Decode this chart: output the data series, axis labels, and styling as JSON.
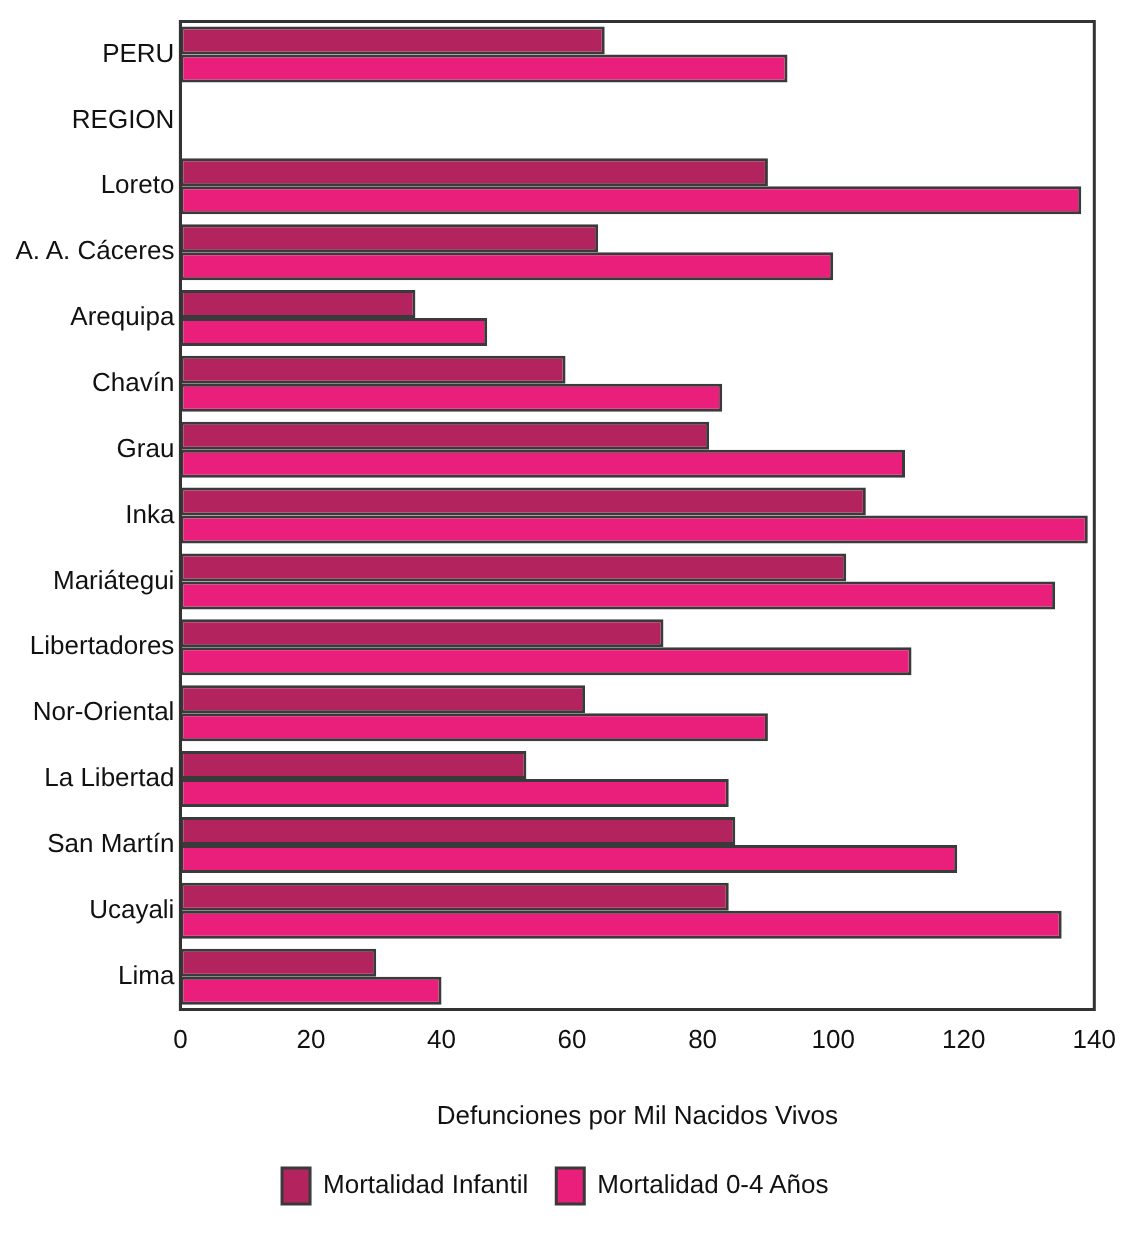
{
  "chart_data": {
    "type": "bar",
    "orientation": "horizontal",
    "xlabel": "Defunciones por Mil Nacidos Vivos",
    "categories": [
      "PERU",
      "REGION",
      "Loreto",
      "A. A. Cáceres",
      "Arequipa",
      "Chavín",
      "Grau",
      "Inka",
      "Mariátegui",
      "Libertadores",
      "Nor-Oriental",
      "La Libertad",
      "San Martín",
      "Ucayali",
      "Lima"
    ],
    "series": [
      {
        "name": "Mortalidad Infantil",
        "color": "#b3245f",
        "values": [
          65,
          null,
          90,
          64,
          36,
          59,
          81,
          105,
          102,
          74,
          62,
          53,
          85,
          84,
          30
        ]
      },
      {
        "name": "Mortalidad 0-4 Años",
        "color": "#ea1f7b",
        "values": [
          93,
          null,
          138,
          100,
          47,
          83,
          111,
          139,
          134,
          112,
          90,
          84,
          119,
          135,
          40
        ]
      }
    ],
    "xlim": [
      0,
      140
    ],
    "xticks": [
      0,
      20,
      40,
      60,
      80,
      100,
      120,
      140
    ],
    "grid": false,
    "legend": "bottom"
  }
}
